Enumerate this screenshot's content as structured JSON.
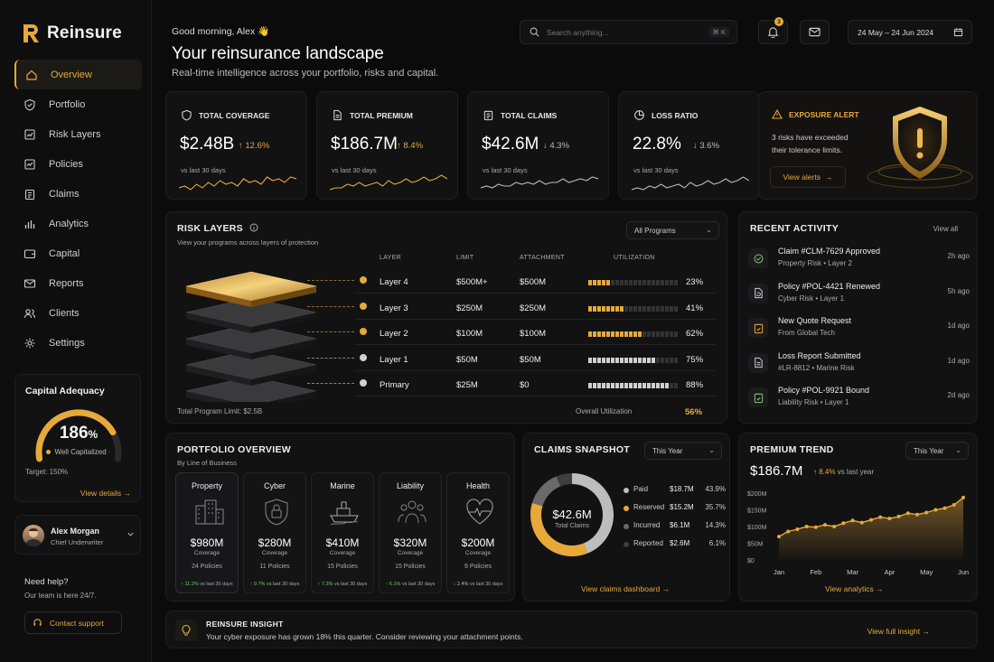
{
  "brand": {
    "name": "Reinsure",
    "accent": "#e6a93a"
  },
  "sidebar": {
    "items": [
      {
        "label": "Overview",
        "icon": "home-icon",
        "active": true
      },
      {
        "label": "Portfolio",
        "icon": "shield-check-icon"
      },
      {
        "label": "Risk Layers",
        "icon": "layers-chart-icon"
      },
      {
        "label": "Policies",
        "icon": "policy-icon"
      },
      {
        "label": "Claims",
        "icon": "clipboard-icon"
      },
      {
        "label": "Analytics",
        "icon": "bar-chart-icon"
      },
      {
        "label": "Capital",
        "icon": "wallet-icon"
      },
      {
        "label": "Reports",
        "icon": "mail-icon"
      },
      {
        "label": "Clients",
        "icon": "users-icon"
      },
      {
        "label": "Settings",
        "icon": "gear-icon"
      }
    ],
    "capital": {
      "title": "Capital Adequacy",
      "value": "186",
      "unit": "%",
      "status": "Well Capitalized",
      "target": "Target: 150%",
      "link": "View details",
      "fraction": 0.8
    },
    "user": {
      "name": "Alex Morgan",
      "role": "Chief Underwriter"
    },
    "help": {
      "title": "Need help?",
      "subtitle": "Our team is here 24/7.",
      "button": "Contact support"
    }
  },
  "header": {
    "greeting": "Good morning, Alex 👋",
    "title": "Your reinsurance landscape",
    "subtitle": "Real-time intelligence across your portfolio, risks and capital.",
    "search_placeholder": "Search anything...",
    "search_shortcut": "⌘ K",
    "notifications": "3",
    "date_range": "24 May – 24 Jun 2024"
  },
  "kpis": [
    {
      "label": "TOTAL COVERAGE",
      "icon": "shield-icon",
      "value": "$2.48B",
      "change": "↑ 12.6%",
      "direction": "up",
      "vs": "vs last 30 days"
    },
    {
      "label": "TOTAL PREMIUM",
      "icon": "document-icon",
      "value": "$186.7M",
      "change": "↑ 8.4%",
      "direction": "up",
      "vs": "vs last 30 days"
    },
    {
      "label": "TOTAL CLAIMS",
      "icon": "clipboard-icon",
      "value": "$42.6M",
      "change": "↓ 4.3%",
      "direction": "down",
      "vs": "vs last 30 days"
    },
    {
      "label": "LOSS RATIO",
      "icon": "pie-icon",
      "value": "22.8%",
      "change": "↓ 3.6%",
      "direction": "down",
      "vs": "vs last 30 days"
    }
  ],
  "alert": {
    "label": "EXPOSURE ALERT",
    "text": "3 risks have exceeded their tolerance limits.",
    "button": "View alerts"
  },
  "risk_layers": {
    "title": "RISK LAYERS",
    "subtitle": "View your programs across layers of protection",
    "filter": "All Programs",
    "headers": [
      "LAYER",
      "LIMIT",
      "ATTACHMENT",
      "UTILIZATION"
    ],
    "rows": [
      {
        "layer": "Layer 4",
        "limit": "$500M+",
        "attachment": "$500M",
        "util": "23%",
        "fraction": 0.23,
        "color": "#e6a93a"
      },
      {
        "layer": "Layer 3",
        "limit": "$250M",
        "attachment": "$250M",
        "util": "41%",
        "fraction": 0.41,
        "color": "#e6a93a"
      },
      {
        "layer": "Layer 2",
        "limit": "$100M",
        "attachment": "$100M",
        "util": "62%",
        "fraction": 0.62,
        "color": "#e6a93a"
      },
      {
        "layer": "Layer 1",
        "limit": "$50M",
        "attachment": "$50M",
        "util": "75%",
        "fraction": 0.75,
        "color": "#d0d0d0"
      },
      {
        "layer": "Primary",
        "limit": "$25M",
        "attachment": "$0",
        "util": "88%",
        "fraction": 0.88,
        "color": "#d0d0d0"
      }
    ],
    "footer_limit": "Total Program Limit: $2.5B",
    "overall_label": "Overall Utilization",
    "overall_value": "56%"
  },
  "recent": {
    "title": "RECENT ACTIVITY",
    "view_all": "View all",
    "items": [
      {
        "title": "Claim #CLM-7629 Approved",
        "sub": "Property Risk  •  Layer 2",
        "time": "2h ago",
        "icon": "check-circle-icon"
      },
      {
        "title": "Policy #POL-4421 Renewed",
        "sub": "Cyber Risk  •  Layer 1",
        "time": "5h ago",
        "icon": "renew-doc-icon"
      },
      {
        "title": "New Quote Request",
        "sub": "From Global Tech",
        "time": "1d ago",
        "icon": "quote-icon"
      },
      {
        "title": "Loss Report Submitted",
        "sub": "#LR-8812  •  Marine Risk",
        "time": "1d ago",
        "icon": "report-icon"
      },
      {
        "title": "Policy #POL-9921 Bound",
        "sub": "Liability Risk  •  Layer 1",
        "time": "2d ago",
        "icon": "bound-icon"
      }
    ]
  },
  "portfolio": {
    "title": "PORTFOLIO OVERVIEW",
    "subtitle": "By Line of Business",
    "lines": [
      {
        "name": "Property",
        "icon": "building-icon",
        "value": "$980M",
        "coverage": "Coverage",
        "policies": "24 Policies",
        "change": "↑ 11.2%",
        "vs": "vs last 30 days",
        "dir": "up"
      },
      {
        "name": "Cyber",
        "icon": "lock-icon",
        "value": "$280M",
        "coverage": "Coverage",
        "policies": "11 Policies",
        "change": "↑ 9.7%",
        "vs": "vs last 30 days",
        "dir": "up"
      },
      {
        "name": "Marine",
        "icon": "ship-icon",
        "value": "$410M",
        "coverage": "Coverage",
        "policies": "15 Policies",
        "change": "↑ 7.3%",
        "vs": "vs last 30 days",
        "dir": "up"
      },
      {
        "name": "Liability",
        "icon": "people-icon",
        "value": "$320M",
        "coverage": "Coverage",
        "policies": "15 Policies",
        "change": "↑ 6.1%",
        "vs": "vs last 30 days",
        "dir": "up"
      },
      {
        "name": "Health",
        "icon": "heart-pulse-icon",
        "value": "$200M",
        "coverage": "Coverage",
        "policies": "9 Policies",
        "change": "↓ 2.4%",
        "vs": "vs last 30 days",
        "dir": "down"
      }
    ]
  },
  "claims": {
    "title": "CLAIMS SNAPSHOT",
    "filter": "This Year",
    "total": "$42.6M",
    "total_label": "Total Claims",
    "legend": [
      {
        "name": "Paid",
        "amount": "$18.7M",
        "pct": "43.9%",
        "value": 43.9,
        "color": "#bdbdbd"
      },
      {
        "name": "Reserved",
        "amount": "$15.2M",
        "pct": "35.7%",
        "value": 35.7,
        "color": "#e6a93a"
      },
      {
        "name": "Incurred",
        "amount": "$6.1M",
        "pct": "14.3%",
        "value": 14.3,
        "color": "#6a6a6a"
      },
      {
        "name": "Reported",
        "amount": "$2.6M",
        "pct": "6.1%",
        "value": 6.1,
        "color": "#3e3e40"
      }
    ],
    "link": "View claims dashboard"
  },
  "trend": {
    "title": "PREMIUM TREND",
    "filter": "This Year",
    "value": "$186.7M",
    "change": "↑ 8.4%",
    "vs": "vs last year",
    "link": "View analytics"
  },
  "chart_data": {
    "type": "area",
    "title": "PREMIUM TREND",
    "categories": [
      "Jan",
      "Feb",
      "Mar",
      "Apr",
      "May",
      "Jun"
    ],
    "ytick_labels": [
      "$200M",
      "$150M",
      "$100M",
      "$50M",
      "$0"
    ],
    "ylim": [
      0,
      200
    ],
    "x": [
      0,
      0.25,
      0.5,
      0.75,
      1,
      1.25,
      1.5,
      1.75,
      2,
      2.25,
      2.5,
      2.75,
      3,
      3.25,
      3.5,
      3.75,
      4,
      4.25,
      4.5,
      4.75,
      5
    ],
    "values": [
      70,
      85,
      92,
      100,
      98,
      105,
      100,
      110,
      118,
      112,
      120,
      128,
      124,
      130,
      140,
      136,
      142,
      150,
      155,
      165,
      186.7
    ],
    "color": "#e6a93a"
  },
  "insight": {
    "title": "REINSURE INSIGHT",
    "text": "Your cyber exposure has grown 18% this quarter. Consider reviewing your attachment points.",
    "link": "View full insight"
  }
}
